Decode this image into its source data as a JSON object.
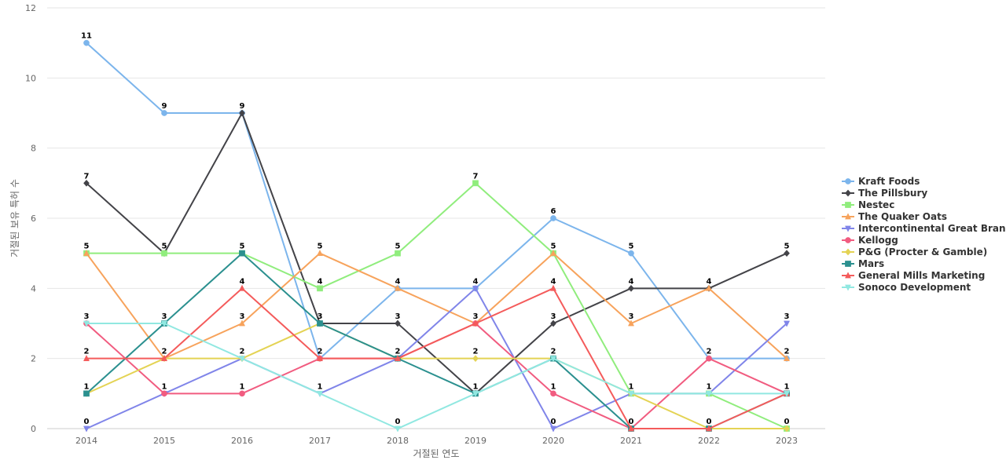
{
  "chart_data": {
    "type": "line",
    "title": "",
    "xlabel": "거절된 연도",
    "ylabel": "거절된 보유 특허 수",
    "x": [
      "2014",
      "2015",
      "2016",
      "2017",
      "2018",
      "2019",
      "2020",
      "2021",
      "2022",
      "2023"
    ],
    "ylim": [
      0,
      12
    ],
    "yticks": [
      0,
      2,
      4,
      6,
      8,
      10,
      12
    ],
    "grid": true,
    "legend_position": "right",
    "series": [
      {
        "name": "Kraft Foods",
        "color": "#7cb5ec",
        "marker": "circle",
        "values": [
          11,
          9,
          9,
          2,
          4,
          4,
          6,
          5,
          2,
          2
        ]
      },
      {
        "name": "The Pillsbury",
        "color": "#434348",
        "marker": "diamond",
        "values": [
          7,
          5,
          9,
          3,
          3,
          1,
          3,
          4,
          4,
          5
        ]
      },
      {
        "name": "Nestec",
        "color": "#90ed7d",
        "marker": "square",
        "values": [
          5,
          5,
          5,
          4,
          5,
          7,
          5,
          1,
          1,
          0
        ]
      },
      {
        "name": "The Quaker Oats",
        "color": "#f7a35c",
        "marker": "triangle",
        "values": [
          5,
          2,
          3,
          5,
          4,
          3,
          5,
          3,
          4,
          2
        ]
      },
      {
        "name": "Intercontinental Great Brands",
        "color": "#8085e9",
        "marker": "triangle-down",
        "values": [
          0,
          1,
          2,
          1,
          2,
          4,
          0,
          1,
          1,
          3
        ]
      },
      {
        "name": "Kellogg",
        "color": "#f15c80",
        "marker": "circle",
        "values": [
          3,
          1,
          1,
          2,
          2,
          3,
          1,
          0,
          2,
          1
        ]
      },
      {
        "name": "P&G (Procter & Gamble)",
        "color": "#e4d354",
        "marker": "diamond",
        "values": [
          1,
          2,
          2,
          3,
          2,
          2,
          2,
          1,
          0,
          0
        ]
      },
      {
        "name": "Mars",
        "color": "#2b908f",
        "marker": "square",
        "values": [
          1,
          3,
          5,
          3,
          2,
          1,
          2,
          0,
          0,
          1
        ]
      },
      {
        "name": "General Mills Marketing",
        "color": "#f45b5b",
        "marker": "triangle",
        "values": [
          2,
          2,
          4,
          2,
          2,
          3,
          4,
          0,
          0,
          1
        ]
      },
      {
        "name": "Sonoco Development",
        "color": "#91e8e1",
        "marker": "triangle-down",
        "values": [
          3,
          3,
          2,
          1,
          0,
          1,
          2,
          1,
          1,
          1
        ]
      }
    ],
    "data_labels": [
      {
        "x": "2014",
        "v": 11
      },
      {
        "x": "2014",
        "v": 7
      },
      {
        "x": "2014",
        "v": 5
      },
      {
        "x": "2014",
        "v": 3
      },
      {
        "x": "2014",
        "v": 2
      },
      {
        "x": "2014",
        "v": 1
      },
      {
        "x": "2014",
        "v": 0
      },
      {
        "x": "2015",
        "v": 9
      },
      {
        "x": "2015",
        "v": 5
      },
      {
        "x": "2015",
        "v": 3
      },
      {
        "x": "2015",
        "v": 2
      },
      {
        "x": "2015",
        "v": 1
      },
      {
        "x": "2016",
        "v": 9
      },
      {
        "x": "2016",
        "v": 5
      },
      {
        "x": "2016",
        "v": 4
      },
      {
        "x": "2016",
        "v": 3
      },
      {
        "x": "2016",
        "v": 2
      },
      {
        "x": "2016",
        "v": 1
      },
      {
        "x": "2017",
        "v": 5
      },
      {
        "x": "2017",
        "v": 4
      },
      {
        "x": "2017",
        "v": 3
      },
      {
        "x": "2017",
        "v": 2
      },
      {
        "x": "2017",
        "v": 1
      },
      {
        "x": "2018",
        "v": 5
      },
      {
        "x": "2018",
        "v": 4
      },
      {
        "x": "2018",
        "v": 3
      },
      {
        "x": "2018",
        "v": 2
      },
      {
        "x": "2018",
        "v": 0
      },
      {
        "x": "2019",
        "v": 7
      },
      {
        "x": "2019",
        "v": 4
      },
      {
        "x": "2019",
        "v": 3
      },
      {
        "x": "2019",
        "v": 2
      },
      {
        "x": "2019",
        "v": 1
      },
      {
        "x": "2020",
        "v": 6
      },
      {
        "x": "2020",
        "v": 5
      },
      {
        "x": "2020",
        "v": 4
      },
      {
        "x": "2020",
        "v": 3
      },
      {
        "x": "2020",
        "v": 2
      },
      {
        "x": "2020",
        "v": 1
      },
      {
        "x": "2020",
        "v": 0
      },
      {
        "x": "2021",
        "v": 5
      },
      {
        "x": "2021",
        "v": 4
      },
      {
        "x": "2021",
        "v": 3
      },
      {
        "x": "2021",
        "v": 1
      },
      {
        "x": "2021",
        "v": 0
      },
      {
        "x": "2022",
        "v": 4
      },
      {
        "x": "2022",
        "v": 2
      },
      {
        "x": "2022",
        "v": 1
      },
      {
        "x": "2022",
        "v": 0
      },
      {
        "x": "2023",
        "v": 5
      },
      {
        "x": "2023",
        "v": 3
      },
      {
        "x": "2023",
        "v": 2
      },
      {
        "x": "2023",
        "v": 1
      },
      {
        "x": "2023",
        "v": 0
      }
    ]
  }
}
